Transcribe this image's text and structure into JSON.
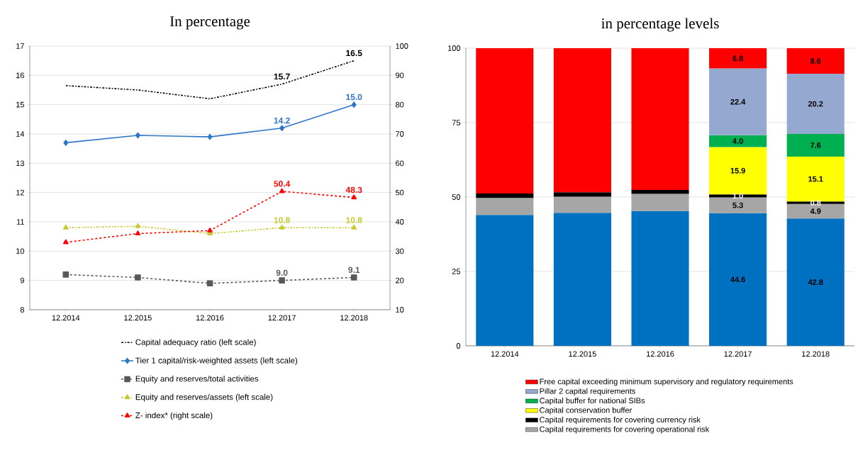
{
  "chart_data": [
    {
      "type": "line",
      "title": "In percentage",
      "categories": [
        "12.2014",
        "12.2015",
        "12.2016",
        "12.2017",
        "12.2018"
      ],
      "ylim": [
        8,
        17
      ],
      "yticks": [
        8,
        9,
        10,
        11,
        12,
        13,
        14,
        15,
        16,
        17
      ],
      "y2lim": [
        10,
        100
      ],
      "y2ticks": [
        10,
        20,
        30,
        40,
        50,
        60,
        70,
        80,
        90,
        100
      ],
      "grid": "y",
      "legend": "bottom",
      "series": [
        {
          "name": "Capital adequacy ratio (left scale)",
          "color": "#000000",
          "marker": "none",
          "line_style": "dashdot",
          "values": [
            15.65,
            15.5,
            15.2,
            15.7,
            16.5
          ],
          "value_labels": [
            null,
            null,
            null,
            "15.7",
            "16.5"
          ]
        },
        {
          "name": "Tier 1 capital/risk-weighted assets (left scale)",
          "color": "#2f75c8",
          "marker": "diamond",
          "line_style": "solid",
          "values": [
            13.7,
            13.95,
            13.9,
            14.2,
            15.0
          ],
          "value_labels": [
            null,
            null,
            null,
            "14.2",
            "15.0"
          ]
        },
        {
          "name": "Equity and reserves/total activities",
          "color": "#595959",
          "marker": "square",
          "line_style": "dashed",
          "values": [
            9.2,
            9.1,
            8.9,
            9.0,
            9.1
          ],
          "value_labels": [
            null,
            null,
            null,
            "9.0",
            "9.1"
          ]
        },
        {
          "name": "Equity and reserves/assets (left scale)",
          "color": "#c8c832",
          "marker": "triangle",
          "line_style": "dashdot",
          "values": [
            10.8,
            10.85,
            10.6,
            10.8,
            10.8
          ],
          "value_labels": [
            null,
            null,
            null,
            "10.8",
            "10.8"
          ]
        },
        {
          "name": "Z- index* (right scale)",
          "color": "#ff0000",
          "marker": "triangle",
          "line_style": "dashed",
          "axis": "y2",
          "values": [
            33,
            36,
            37,
            50.4,
            48.3
          ],
          "value_labels": [
            null,
            null,
            null,
            "50.4",
            "48.3"
          ]
        }
      ]
    },
    {
      "type": "bar",
      "title": "in percentage levels",
      "stacked": true,
      "categories": [
        "12.2014",
        "12.2015",
        "12.2016",
        "12.2017",
        "12.2018"
      ],
      "ylim": [
        0,
        100
      ],
      "yticks": [
        0,
        25,
        50,
        75,
        100
      ],
      "grid": "y",
      "legend": "bottom",
      "series": [
        {
          "color": "#0070c0",
          "values": [
            44.0,
            44.7,
            45.3,
            44.6,
            42.8
          ],
          "value_labels": [
            null,
            null,
            null,
            "44.6",
            "42.8"
          ]
        },
        {
          "name": "Capital requirements for covering operational risk",
          "color": "#a6a6a6",
          "values": [
            5.7,
            5.4,
            5.8,
            5.3,
            4.9
          ],
          "value_labels": [
            null,
            null,
            null,
            "5.3",
            "4.9"
          ]
        },
        {
          "name": "Capital requirements for covering currency risk",
          "color": "#000000",
          "values": [
            1.5,
            1.5,
            1.3,
            1.0,
            0.8
          ],
          "value_labels": [
            null,
            null,
            null,
            "1.0",
            "0.8"
          ]
        },
        {
          "name": "Capital conservation buffer",
          "color": "#ffff00",
          "values": [
            null,
            null,
            null,
            15.9,
            15.1
          ],
          "value_labels": [
            null,
            null,
            null,
            "15.9",
            "15.1"
          ]
        },
        {
          "name": "Capital buffer for national SIBs",
          "color": "#00b050",
          "values": [
            null,
            null,
            null,
            4.0,
            7.6
          ],
          "value_labels": [
            null,
            null,
            null,
            "4.0",
            "7.6"
          ]
        },
        {
          "name": "Pillar 2 capital requirements",
          "color": "#95a9d0",
          "values": [
            null,
            null,
            null,
            22.4,
            20.2
          ],
          "value_labels": [
            null,
            null,
            null,
            "22.4",
            "20.2"
          ]
        },
        {
          "name": "Free capital exceeding minimum supervisory and regulatory requirements",
          "color": "#ff0000",
          "values": [
            48.8,
            48.4,
            47.6,
            6.8,
            8.6
          ],
          "value_labels": [
            null,
            null,
            null,
            "6.8",
            "8.6"
          ]
        }
      ]
    }
  ]
}
